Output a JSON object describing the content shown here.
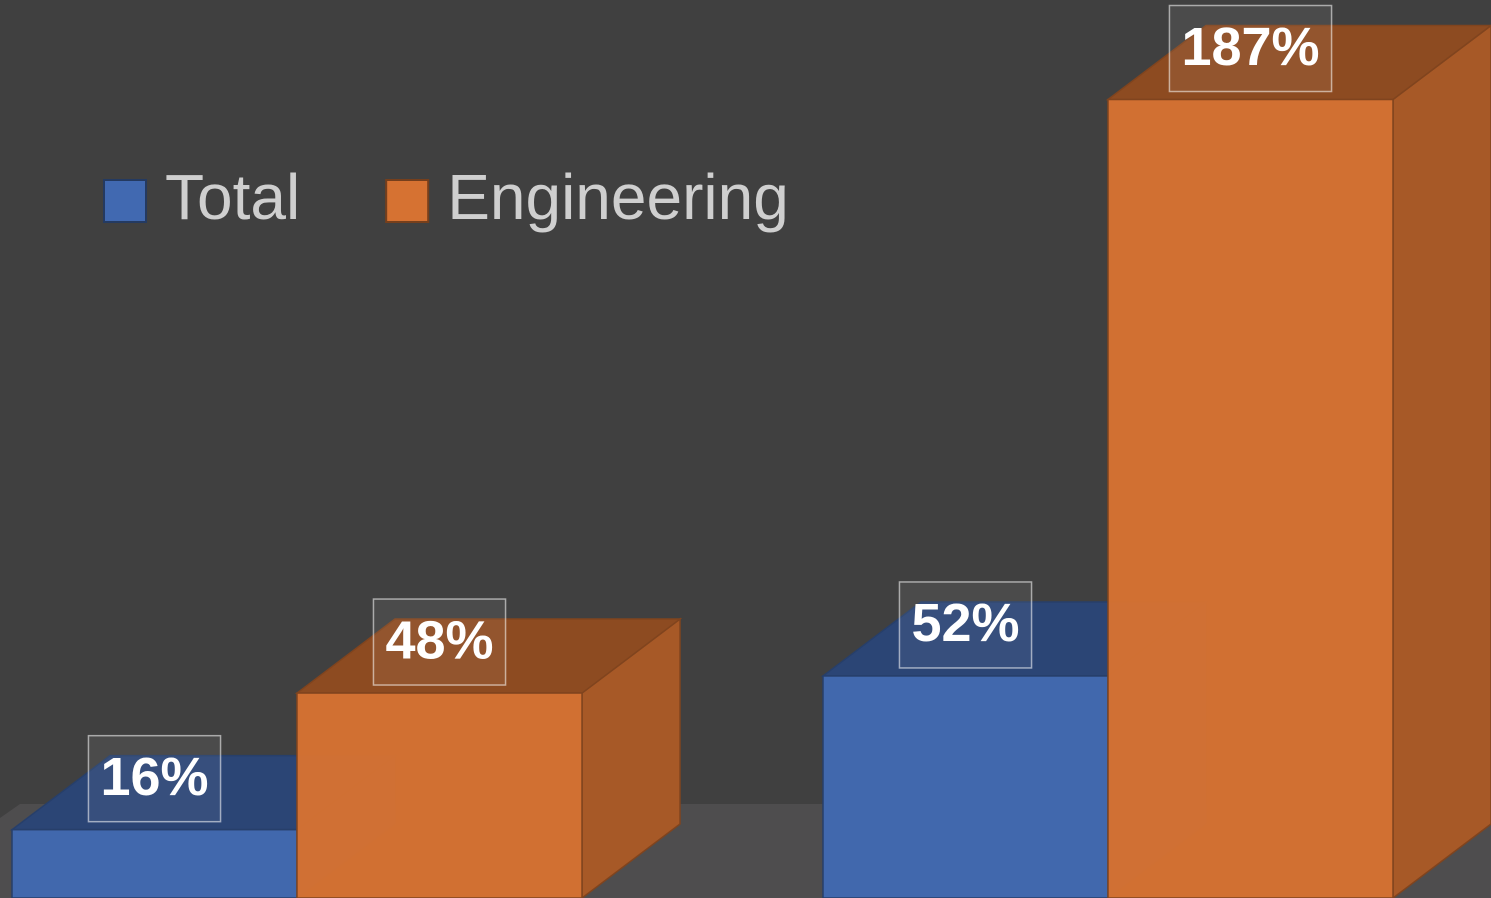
{
  "chart_data": {
    "type": "bar3d",
    "categories": [
      null,
      null
    ],
    "series": [
      {
        "name": "Total",
        "color": "#4169b1",
        "values": [
          16,
          52
        ],
        "value_labels": [
          "16%",
          "52%"
        ]
      },
      {
        "name": "Engineering",
        "color": "#d67232",
        "values": [
          48,
          187
        ],
        "value_labels": [
          "48%",
          "187%"
        ]
      }
    ],
    "legend": "top-left"
  }
}
